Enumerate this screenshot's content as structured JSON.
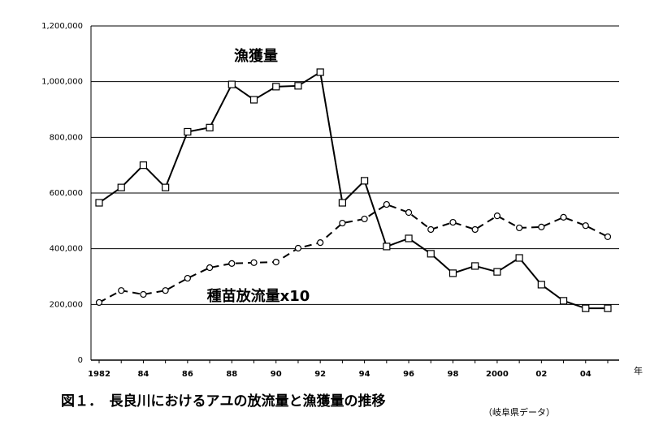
{
  "chart_data": {
    "type": "line",
    "title": "図１．　長良川におけるアユの放流量と漁獲量の推移",
    "source": "（岐阜県データ）",
    "x_unit": "年",
    "categories": [
      "1982",
      null,
      "84",
      null,
      "86",
      null,
      "88",
      null,
      "90",
      null,
      "92",
      null,
      "94",
      null,
      "96",
      null,
      "98",
      null,
      "2000",
      null,
      "02",
      null,
      "04",
      null
    ],
    "series": [
      {
        "name": "漁獲量",
        "color": "#000000",
        "line_style": "solid",
        "marker": "square",
        "values": [
          565000,
          620000,
          700000,
          620000,
          820000,
          835000,
          990000,
          935000,
          982000,
          985000,
          1034000,
          565000,
          644000,
          408000,
          437000,
          382000,
          312000,
          338000,
          317000,
          367000,
          271000,
          213000,
          186000,
          186000
        ]
      },
      {
        "name": "種苗放流量x10",
        "color": "#000000",
        "line_style": "dashed",
        "marker": "circle",
        "values": [
          207000,
          250000,
          236000,
          250000,
          294000,
          332000,
          347000,
          350000,
          352000,
          402000,
          422000,
          492000,
          507000,
          559000,
          530000,
          469000,
          495000,
          469000,
          518000,
          475000,
          478000,
          513000,
          483000,
          443000
        ]
      }
    ],
    "ylim": [
      0,
      1200000
    ],
    "yticks": [
      0,
      {
        "value": 200000,
        "label": "200,000"
      },
      {
        "value": 400000,
        "label": "400,000"
      },
      {
        "value": 600000,
        "label": "600,000"
      },
      {
        "value": 800000,
        "label": "800,000"
      },
      {
        "value": 1000000,
        "label": "1,000,000"
      },
      {
        "value": 1200000,
        "label": "1,200,000"
      }
    ],
    "grid": true
  }
}
